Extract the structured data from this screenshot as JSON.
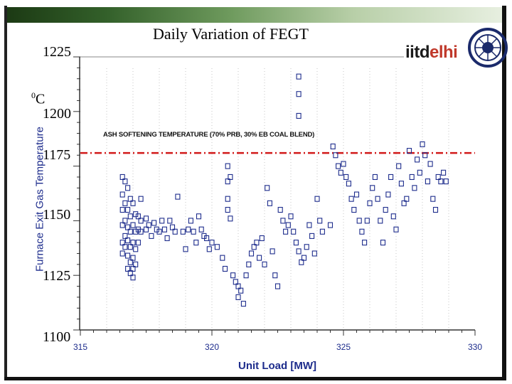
{
  "slide": {
    "title": "Daily Variation of FEGT",
    "logo": {
      "text_a": "iitd",
      "text_b": "elhi"
    }
  },
  "colors": {
    "marker": "#1d2c8c",
    "threshold": "#d11a1a",
    "axis_text": "#1d2c8c"
  },
  "chart_data": {
    "type": "scatter",
    "title": "Daily Variation of FEGT",
    "xlabel": "Unit Load [MW]",
    "ylabel": "Furnace Exit Gas Temperature",
    "y_unit_label": "0C",
    "xlim": [
      315,
      330
    ],
    "ylim": [
      1100,
      1225
    ],
    "x_ticks": [
      "315",
      "320",
      "325",
      "330"
    ],
    "y_ticks": [
      "1225",
      "1200",
      "1175",
      "1150",
      "1125",
      "1100"
    ],
    "threshold": {
      "label": "ASH SOFTENING TEMPERATURE (70% PRB, 30% EB COAL BLEND)",
      "value": 1181
    },
    "points": [
      [
        316.6,
        1170
      ],
      [
        316.6,
        1162
      ],
      [
        316.6,
        1155
      ],
      [
        316.6,
        1148
      ],
      [
        316.6,
        1140
      ],
      [
        316.6,
        1135
      ],
      [
        316.7,
        1168
      ],
      [
        316.7,
        1158
      ],
      [
        316.7,
        1150
      ],
      [
        316.7,
        1143
      ],
      [
        316.7,
        1138
      ],
      [
        316.8,
        1165
      ],
      [
        316.8,
        1155
      ],
      [
        316.8,
        1147
      ],
      [
        316.8,
        1141
      ],
      [
        316.8,
        1134
      ],
      [
        316.8,
        1128
      ],
      [
        316.9,
        1160
      ],
      [
        316.9,
        1152
      ],
      [
        316.9,
        1145
      ],
      [
        316.9,
        1138
      ],
      [
        316.9,
        1131
      ],
      [
        316.9,
        1126
      ],
      [
        317.0,
        1158
      ],
      [
        317.0,
        1148
      ],
      [
        317.0,
        1140
      ],
      [
        317.0,
        1133
      ],
      [
        317.0,
        1128
      ],
      [
        317.0,
        1124
      ],
      [
        317.1,
        1153
      ],
      [
        317.1,
        1145
      ],
      [
        317.1,
        1137
      ],
      [
        317.1,
        1130
      ],
      [
        317.2,
        1152
      ],
      [
        317.2,
        1146
      ],
      [
        317.2,
        1140
      ],
      [
        317.3,
        1160
      ],
      [
        317.3,
        1150
      ],
      [
        317.3,
        1145
      ],
      [
        317.5,
        1151
      ],
      [
        317.5,
        1146
      ],
      [
        317.6,
        1148
      ],
      [
        317.7,
        1143
      ],
      [
        317.8,
        1149
      ],
      [
        317.9,
        1146
      ],
      [
        318.0,
        1145
      ],
      [
        318.1,
        1150
      ],
      [
        318.2,
        1146
      ],
      [
        318.3,
        1142
      ],
      [
        318.4,
        1150
      ],
      [
        318.5,
        1147
      ],
      [
        318.6,
        1145
      ],
      [
        318.7,
        1161
      ],
      [
        318.9,
        1145
      ],
      [
        319.0,
        1137
      ],
      [
        319.1,
        1146
      ],
      [
        319.2,
        1150
      ],
      [
        319.3,
        1145
      ],
      [
        319.4,
        1140
      ],
      [
        319.5,
        1152
      ],
      [
        319.6,
        1146
      ],
      [
        319.7,
        1143
      ],
      [
        319.8,
        1142
      ],
      [
        319.9,
        1137
      ],
      [
        320.0,
        1140
      ],
      [
        320.2,
        1138
      ],
      [
        320.4,
        1133
      ],
      [
        320.5,
        1128
      ],
      [
        320.6,
        1175
      ],
      [
        320.6,
        1168
      ],
      [
        320.6,
        1160
      ],
      [
        320.6,
        1155
      ],
      [
        320.7,
        1170
      ],
      [
        320.7,
        1151
      ],
      [
        320.8,
        1125
      ],
      [
        320.9,
        1122
      ],
      [
        321.0,
        1120
      ],
      [
        321.0,
        1115
      ],
      [
        321.1,
        1118
      ],
      [
        321.2,
        1112
      ],
      [
        321.3,
        1125
      ],
      [
        321.4,
        1130
      ],
      [
        321.5,
        1135
      ],
      [
        321.6,
        1138
      ],
      [
        321.7,
        1140
      ],
      [
        321.8,
        1133
      ],
      [
        321.9,
        1142
      ],
      [
        322.0,
        1130
      ],
      [
        322.1,
        1165
      ],
      [
        322.2,
        1158
      ],
      [
        322.3,
        1136
      ],
      [
        322.4,
        1125
      ],
      [
        322.5,
        1120
      ],
      [
        322.6,
        1155
      ],
      [
        322.7,
        1150
      ],
      [
        322.8,
        1145
      ],
      [
        322.9,
        1148
      ],
      [
        323.0,
        1152
      ],
      [
        323.1,
        1145
      ],
      [
        323.2,
        1140
      ],
      [
        323.3,
        1136
      ],
      [
        323.4,
        1131
      ],
      [
        323.5,
        1133
      ],
      [
        323.6,
        1138
      ],
      [
        323.7,
        1148
      ],
      [
        323.8,
        1143
      ],
      [
        323.9,
        1135
      ],
      [
        324.0,
        1160
      ],
      [
        324.1,
        1150
      ],
      [
        324.2,
        1145
      ],
      [
        324.5,
        1148
      ],
      [
        323.3,
        1216
      ],
      [
        323.3,
        1208
      ],
      [
        323.3,
        1198
      ],
      [
        324.6,
        1184
      ],
      [
        324.7,
        1180
      ],
      [
        324.8,
        1175
      ],
      [
        324.9,
        1172
      ],
      [
        325.0,
        1176
      ],
      [
        325.1,
        1170
      ],
      [
        325.2,
        1167
      ],
      [
        325.3,
        1160
      ],
      [
        325.4,
        1155
      ],
      [
        325.5,
        1162
      ],
      [
        325.6,
        1150
      ],
      [
        325.7,
        1145
      ],
      [
        325.8,
        1140
      ],
      [
        325.9,
        1150
      ],
      [
        326.0,
        1158
      ],
      [
        326.1,
        1165
      ],
      [
        326.2,
        1170
      ],
      [
        326.3,
        1160
      ],
      [
        326.4,
        1150
      ],
      [
        326.5,
        1140
      ],
      [
        326.6,
        1155
      ],
      [
        326.7,
        1162
      ],
      [
        326.8,
        1170
      ],
      [
        326.9,
        1152
      ],
      [
        327.0,
        1146
      ],
      [
        327.1,
        1175
      ],
      [
        327.2,
        1167
      ],
      [
        327.3,
        1158
      ],
      [
        327.4,
        1160
      ],
      [
        327.5,
        1182
      ],
      [
        327.6,
        1170
      ],
      [
        327.7,
        1165
      ],
      [
        327.8,
        1178
      ],
      [
        327.9,
        1172
      ],
      [
        328.0,
        1185
      ],
      [
        328.1,
        1180
      ],
      [
        328.2,
        1168
      ],
      [
        328.3,
        1176
      ],
      [
        328.4,
        1160
      ],
      [
        328.5,
        1155
      ],
      [
        328.6,
        1170
      ],
      [
        328.7,
        1168
      ],
      [
        328.8,
        1172
      ],
      [
        328.9,
        1168
      ]
    ]
  }
}
